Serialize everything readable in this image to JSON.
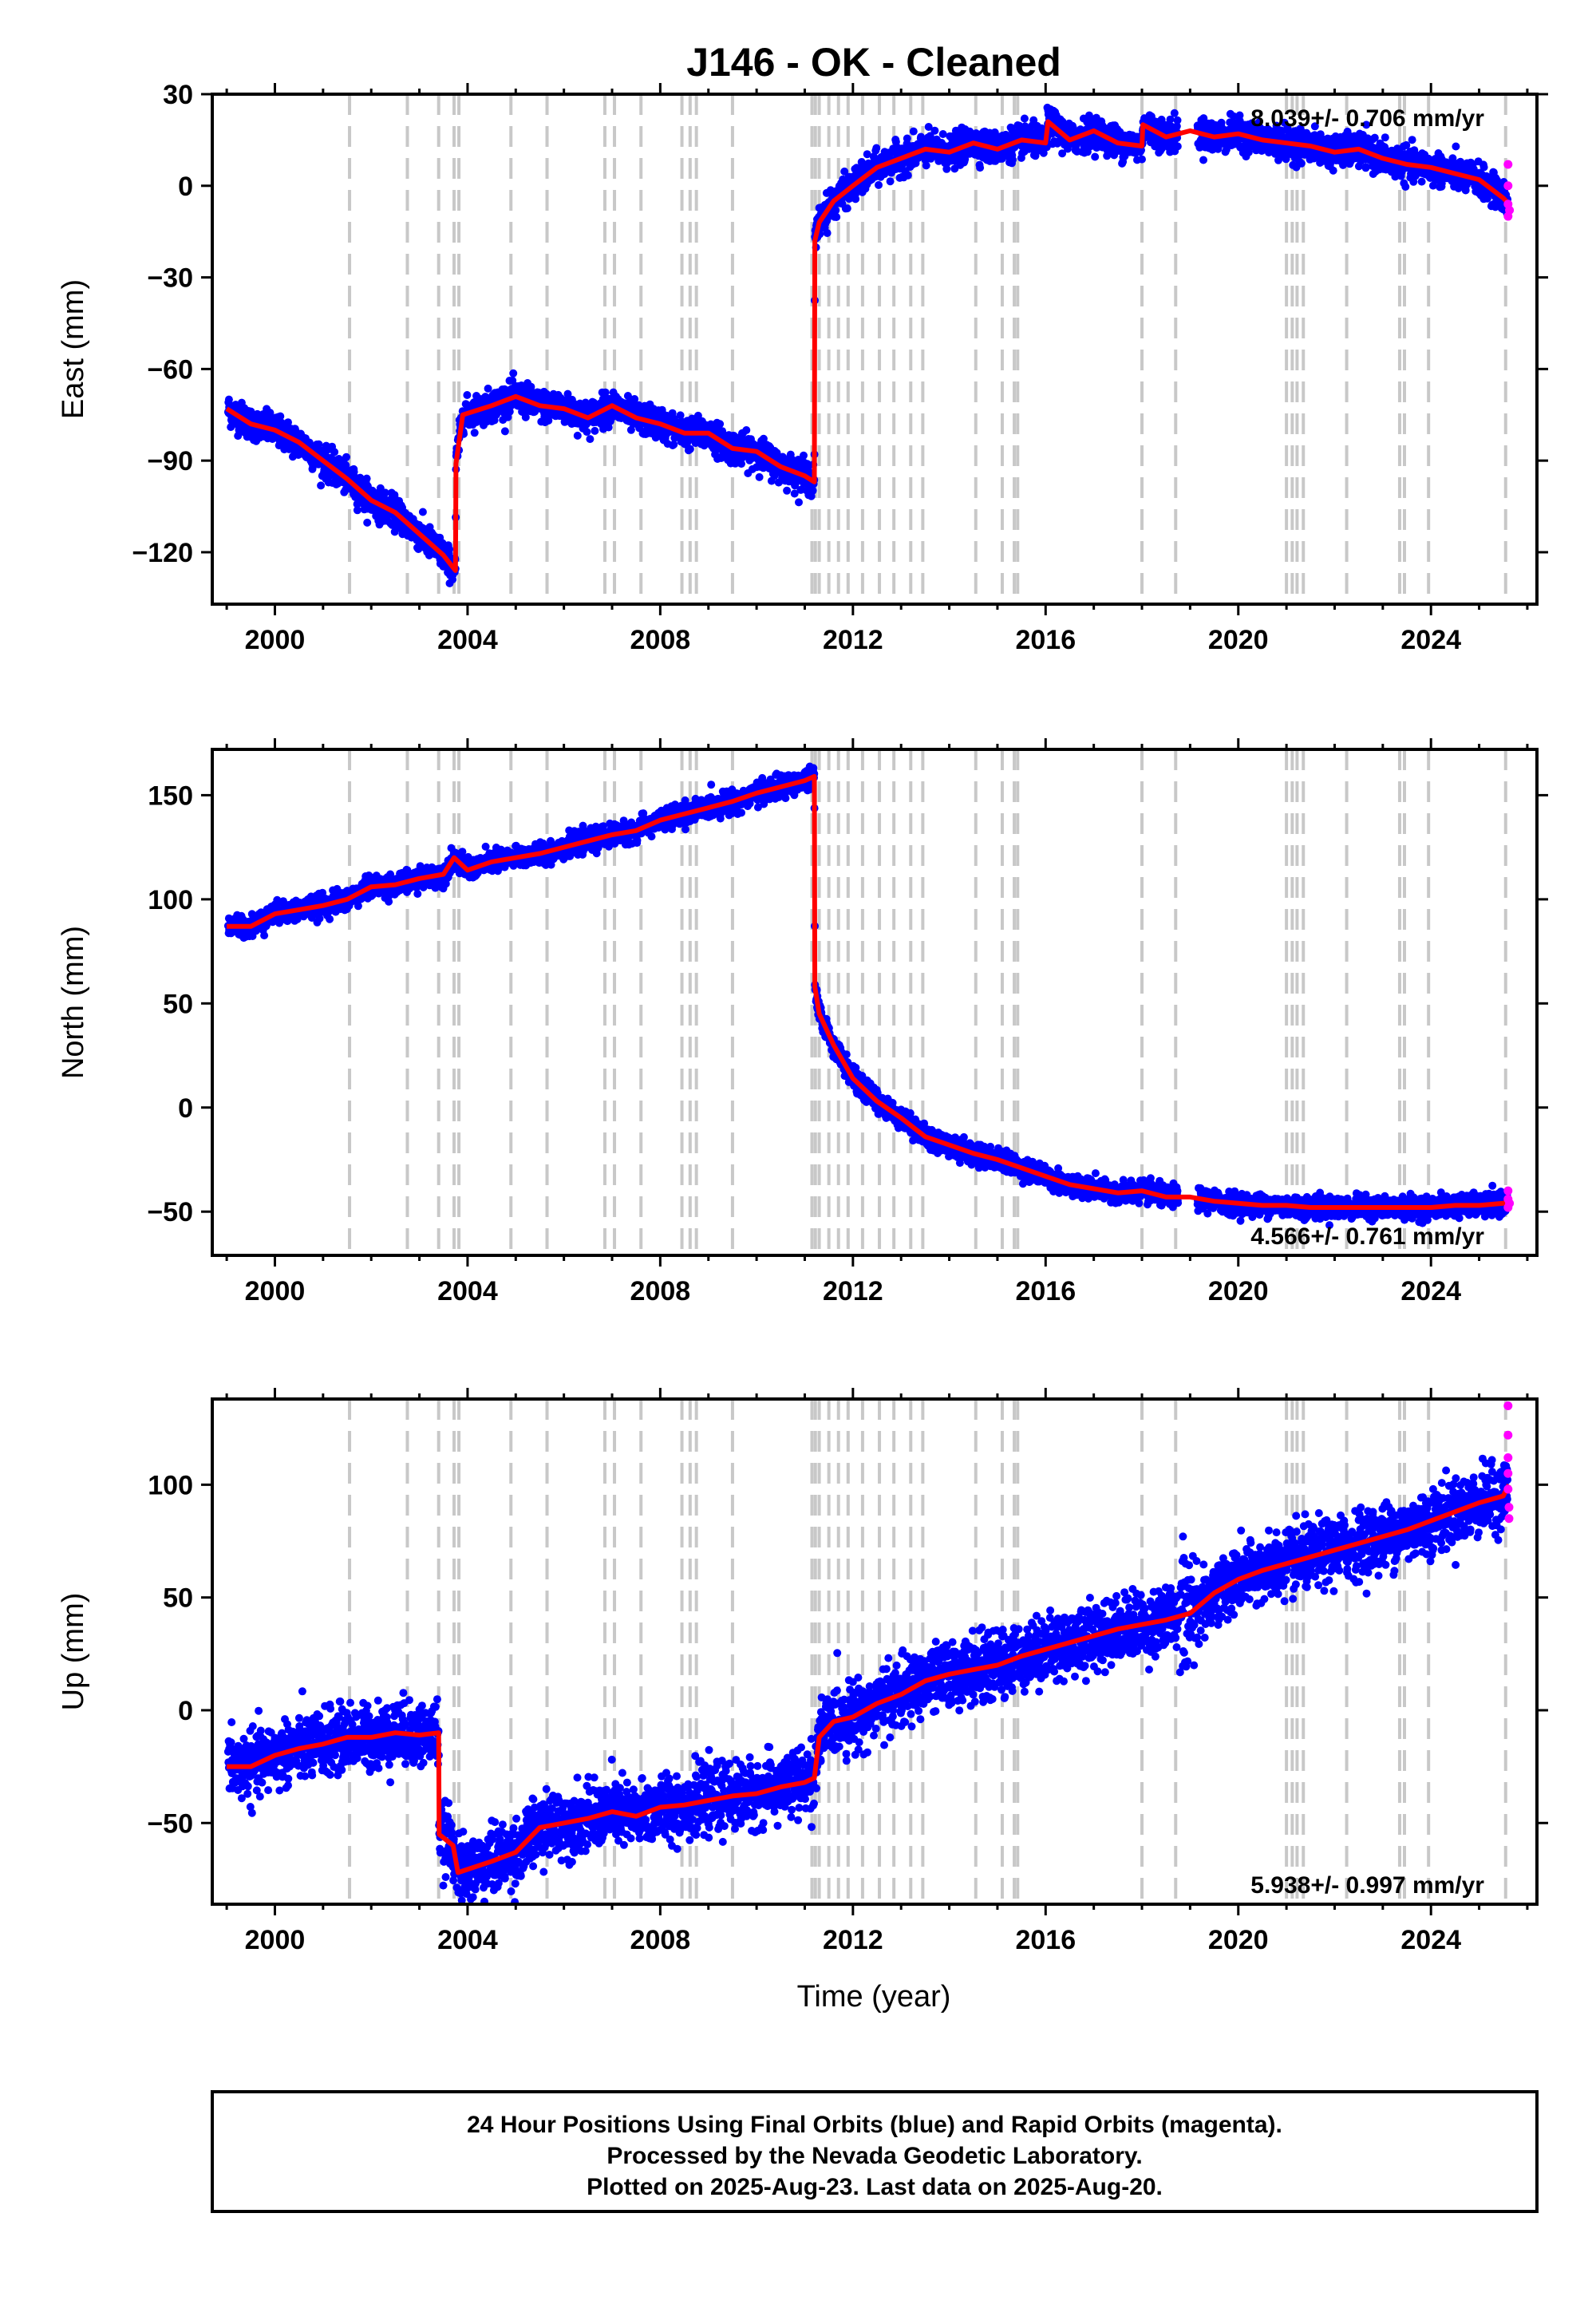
{
  "chart_data": {
    "type": "scatter",
    "title": "J146  - OK - Cleaned",
    "xlabel": "Time (year)",
    "xlim": [
      1998.7,
      2026.2
    ],
    "x_ticks": [
      2000,
      2004,
      2008,
      2012,
      2016,
      2020,
      2024
    ],
    "x_tick_labels": [
      "2000",
      "2004",
      "2008",
      "2012",
      "2016",
      "2020",
      "2024"
    ],
    "grid": false,
    "colors": {
      "final": "#0000ff",
      "rapid": "#ff00ff",
      "model": "#ff0000",
      "offset_lines": "#c8c8c8"
    },
    "offset_lines": [
      2001.55,
      2002.75,
      2003.4,
      2003.72,
      2003.82,
      2004.9,
      2005.65,
      2006.85,
      2007.05,
      2007.6,
      2008.45,
      2008.62,
      2008.75,
      2009.5,
      2011.15,
      2011.22,
      2011.3,
      2011.5,
      2011.7,
      2011.9,
      2012.2,
      2012.55,
      2012.85,
      2013.2,
      2013.45,
      2014.55,
      2015.1,
      2015.35,
      2015.42,
      2018.0,
      2018.7,
      2021.0,
      2021.12,
      2021.22,
      2021.35,
      2022.25,
      2023.35,
      2023.45,
      2023.95,
      2025.55
    ],
    "panels": [
      {
        "id": "east",
        "ylabel": "East (mm)",
        "ylim": [
          -137,
          30
        ],
        "y_ticks": [
          30,
          0,
          -30,
          -60,
          -90,
          -120
        ],
        "y_tick_labels": [
          "30",
          "0",
          "−30",
          "−60",
          "−90",
          "−120"
        ],
        "rate_label": "8.039+/- 0.706 mm/yr",
        "rate_position": "top-right",
        "model_knots": [
          [
            1999.0,
            -73
          ],
          [
            1999.5,
            -78
          ],
          [
            2000.0,
            -80
          ],
          [
            2000.5,
            -84
          ],
          [
            2001.0,
            -90
          ],
          [
            2001.5,
            -96
          ],
          [
            2002.0,
            -103
          ],
          [
            2002.5,
            -107
          ],
          [
            2003.0,
            -114
          ],
          [
            2003.5,
            -121
          ],
          [
            2003.75,
            -126
          ],
          [
            2003.76,
            -91
          ],
          [
            2003.9,
            -75
          ],
          [
            2004.5,
            -72
          ],
          [
            2005.0,
            -69
          ],
          [
            2005.5,
            -72
          ],
          [
            2006.0,
            -73
          ],
          [
            2006.5,
            -76
          ],
          [
            2007.0,
            -72
          ],
          [
            2007.5,
            -76
          ],
          [
            2008.0,
            -78
          ],
          [
            2008.5,
            -81
          ],
          [
            2009.0,
            -81
          ],
          [
            2009.5,
            -86
          ],
          [
            2010.0,
            -87
          ],
          [
            2010.5,
            -92
          ],
          [
            2011.0,
            -95
          ],
          [
            2011.2,
            -97
          ],
          [
            2011.21,
            -18
          ],
          [
            2011.3,
            -12
          ],
          [
            2011.6,
            -5
          ],
          [
            2012.0,
            0
          ],
          [
            2012.5,
            6
          ],
          [
            2013.0,
            9
          ],
          [
            2013.5,
            12
          ],
          [
            2014.0,
            11
          ],
          [
            2014.5,
            14
          ],
          [
            2015.0,
            12
          ],
          [
            2015.5,
            15
          ],
          [
            2016.0,
            14
          ],
          [
            2016.05,
            21
          ],
          [
            2016.5,
            15
          ],
          [
            2017.0,
            18
          ],
          [
            2017.5,
            14
          ],
          [
            2018.0,
            13
          ],
          [
            2018.02,
            20
          ],
          [
            2018.5,
            16
          ],
          [
            2019.0,
            18
          ],
          [
            2019.5,
            16
          ],
          [
            2020.0,
            17
          ],
          [
            2020.5,
            15
          ],
          [
            2021.0,
            14
          ],
          [
            2021.5,
            13
          ],
          [
            2022.0,
            11
          ],
          [
            2022.5,
            12
          ],
          [
            2023.0,
            9
          ],
          [
            2023.5,
            7
          ],
          [
            2024.0,
            6
          ],
          [
            2024.5,
            4
          ],
          [
            2025.0,
            2
          ],
          [
            2025.5,
            -4
          ],
          [
            2025.62,
            -6
          ]
        ],
        "noise_sd": 2.5,
        "rapid_points": [
          [
            2025.6,
            7
          ],
          [
            2025.6,
            0
          ],
          [
            2025.6,
            -6
          ],
          [
            2025.6,
            -10
          ],
          [
            2025.63,
            -8
          ]
        ]
      },
      {
        "id": "north",
        "ylabel": "North (mm)",
        "ylim": [
          -71,
          172
        ],
        "y_ticks": [
          150,
          100,
          50,
          0,
          -50
        ],
        "y_tick_labels": [
          "150",
          "100",
          "50",
          "0",
          "−50"
        ],
        "rate_label": "4.566+/- 0.761 mm/yr",
        "rate_position": "bottom-right",
        "model_knots": [
          [
            1999.0,
            87
          ],
          [
            1999.5,
            87
          ],
          [
            2000.0,
            93
          ],
          [
            2000.5,
            95
          ],
          [
            2001.0,
            97
          ],
          [
            2001.5,
            100
          ],
          [
            2002.0,
            106
          ],
          [
            2002.5,
            107
          ],
          [
            2003.0,
            110
          ],
          [
            2003.5,
            112
          ],
          [
            2003.72,
            120
          ],
          [
            2004.0,
            114
          ],
          [
            2004.5,
            118
          ],
          [
            2005.0,
            120
          ],
          [
            2005.5,
            122
          ],
          [
            2006.0,
            125
          ],
          [
            2006.5,
            128
          ],
          [
            2007.0,
            131
          ],
          [
            2007.5,
            133
          ],
          [
            2008.0,
            138
          ],
          [
            2008.5,
            141
          ],
          [
            2009.0,
            144
          ],
          [
            2009.5,
            147
          ],
          [
            2010.0,
            151
          ],
          [
            2010.5,
            154
          ],
          [
            2011.0,
            157
          ],
          [
            2011.2,
            159
          ],
          [
            2011.21,
            58
          ],
          [
            2011.3,
            45
          ],
          [
            2011.6,
            30
          ],
          [
            2012.0,
            14
          ],
          [
            2012.5,
            3
          ],
          [
            2013.0,
            -5
          ],
          [
            2013.5,
            -14
          ],
          [
            2014.0,
            -18
          ],
          [
            2014.5,
            -22
          ],
          [
            2015.0,
            -25
          ],
          [
            2015.5,
            -29
          ],
          [
            2016.0,
            -33
          ],
          [
            2016.5,
            -37
          ],
          [
            2017.0,
            -39
          ],
          [
            2017.5,
            -41
          ],
          [
            2018.0,
            -40
          ],
          [
            2018.5,
            -43
          ],
          [
            2019.0,
            -43
          ],
          [
            2019.5,
            -45
          ],
          [
            2020.0,
            -46
          ],
          [
            2020.5,
            -47
          ],
          [
            2021.0,
            -47
          ],
          [
            2021.5,
            -48
          ],
          [
            2022.0,
            -48
          ],
          [
            2022.5,
            -48
          ],
          [
            2023.0,
            -48
          ],
          [
            2023.5,
            -48
          ],
          [
            2024.0,
            -48
          ],
          [
            2024.5,
            -47
          ],
          [
            2025.0,
            -47
          ],
          [
            2025.5,
            -46
          ],
          [
            2025.62,
            -45
          ]
        ],
        "noise_sd": 2.5,
        "rapid_points": [
          [
            2025.6,
            -40
          ],
          [
            2025.6,
            -44
          ],
          [
            2025.6,
            -48
          ],
          [
            2025.63,
            -46
          ]
        ]
      },
      {
        "id": "up",
        "ylabel": "Up (mm)",
        "ylim": [
          -86,
          138
        ],
        "y_ticks": [
          100,
          50,
          0,
          -50
        ],
        "y_tick_labels": [
          "100",
          "50",
          "0",
          "−50"
        ],
        "rate_label": "5.938+/- 0.997 mm/yr",
        "rate_position": "bottom-right",
        "model_knots": [
          [
            1999.0,
            -25
          ],
          [
            1999.5,
            -25
          ],
          [
            2000.0,
            -20
          ],
          [
            2000.5,
            -17
          ],
          [
            2001.0,
            -15
          ],
          [
            2001.5,
            -12
          ],
          [
            2002.0,
            -12
          ],
          [
            2002.5,
            -10
          ],
          [
            2003.0,
            -11
          ],
          [
            2003.4,
            -10
          ],
          [
            2003.41,
            -55
          ],
          [
            2003.7,
            -60
          ],
          [
            2003.8,
            -72
          ],
          [
            2004.5,
            -67
          ],
          [
            2005.0,
            -63
          ],
          [
            2005.5,
            -52
          ],
          [
            2006.0,
            -50
          ],
          [
            2006.5,
            -48
          ],
          [
            2007.0,
            -45
          ],
          [
            2007.5,
            -47
          ],
          [
            2008.0,
            -43
          ],
          [
            2008.5,
            -42
          ],
          [
            2009.0,
            -40
          ],
          [
            2009.5,
            -38
          ],
          [
            2010.0,
            -37
          ],
          [
            2010.5,
            -34
          ],
          [
            2011.0,
            -32
          ],
          [
            2011.2,
            -30
          ],
          [
            2011.3,
            -12
          ],
          [
            2011.6,
            -5
          ],
          [
            2012.0,
            -3
          ],
          [
            2012.5,
            3
          ],
          [
            2013.0,
            7
          ],
          [
            2013.5,
            13
          ],
          [
            2014.0,
            16
          ],
          [
            2014.5,
            18
          ],
          [
            2015.0,
            20
          ],
          [
            2015.5,
            24
          ],
          [
            2016.0,
            27
          ],
          [
            2016.5,
            30
          ],
          [
            2017.0,
            33
          ],
          [
            2017.5,
            36
          ],
          [
            2018.0,
            38
          ],
          [
            2018.5,
            40
          ],
          [
            2019.0,
            43
          ],
          [
            2019.5,
            52
          ],
          [
            2020.0,
            58
          ],
          [
            2020.5,
            62
          ],
          [
            2021.0,
            65
          ],
          [
            2021.5,
            68
          ],
          [
            2022.0,
            71
          ],
          [
            2022.5,
            74
          ],
          [
            2023.0,
            77
          ],
          [
            2023.5,
            80
          ],
          [
            2024.0,
            84
          ],
          [
            2024.5,
            88
          ],
          [
            2025.0,
            92
          ],
          [
            2025.5,
            95
          ],
          [
            2025.62,
            100
          ]
        ],
        "noise_sd": 7,
        "rapid_points": [
          [
            2025.6,
            135
          ],
          [
            2025.6,
            122
          ],
          [
            2025.6,
            112
          ],
          [
            2025.6,
            105
          ],
          [
            2025.6,
            98
          ],
          [
            2025.62,
            90
          ],
          [
            2025.62,
            85
          ]
        ]
      }
    ]
  },
  "footer": {
    "line1": "24 Hour Positions Using Final Orbits (blue) and Rapid Orbits (magenta).",
    "line2": "Processed by the Nevada Geodetic Laboratory.",
    "line3": "Plotted on 2025-Aug-23. Last data on 2025-Aug-20."
  }
}
